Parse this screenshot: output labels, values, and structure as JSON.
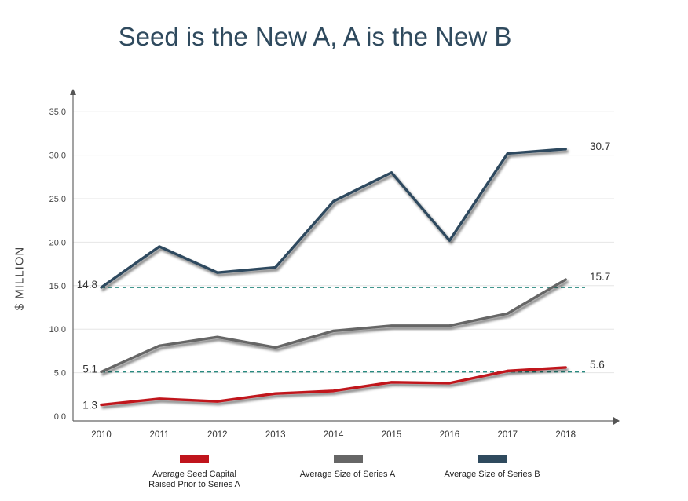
{
  "chart_data": {
    "type": "line",
    "title": "Seed is the New A, A is the New B",
    "ylabel": "$ MILLION",
    "xlabel": "",
    "categories": [
      "2010",
      "2011",
      "2012",
      "2013",
      "2014",
      "2015",
      "2016",
      "2017",
      "2018"
    ],
    "ylim": [
      0,
      35
    ],
    "yticks": [
      "0.0",
      "5.0",
      "10.0",
      "15.0",
      "20.0",
      "25.0",
      "30.0",
      "35.0"
    ],
    "grid": true,
    "legend_position": "bottom",
    "series": [
      {
        "name": "Average Seed Capital Raised Prior to Series A",
        "color": "#c0141c",
        "values": [
          1.3,
          2.0,
          1.7,
          2.6,
          2.9,
          3.9,
          3.8,
          5.2,
          5.6
        ],
        "start_label": "1.3",
        "end_label": "5.6"
      },
      {
        "name": "Average Size of Series A",
        "color": "#666666",
        "values": [
          5.1,
          8.1,
          9.1,
          7.9,
          9.8,
          10.4,
          10.4,
          11.8,
          15.7
        ],
        "start_label": "5.1",
        "end_label": "15.7"
      },
      {
        "name": "Average Size of Series B",
        "color": "#2f4a5e",
        "values": [
          14.8,
          19.5,
          16.5,
          17.1,
          24.7,
          28.0,
          20.2,
          30.2,
          30.7
        ],
        "start_label": "14.8",
        "end_label": "30.7"
      }
    ],
    "reference_lines": [
      {
        "value": 14.8,
        "color": "#2a8a80",
        "style": "dashed"
      },
      {
        "value": 5.1,
        "color": "#2a8a80",
        "style": "dashed"
      }
    ]
  },
  "legend": [
    {
      "line1": "Average Seed Capital",
      "line2": "Raised Prior to Series A",
      "color": "#c0141c"
    },
    {
      "line1": "Average Size of Series A",
      "line2": "",
      "color": "#666666"
    },
    {
      "line1": "Average Size of Series B",
      "line2": "",
      "color": "#2f4a5e"
    }
  ]
}
